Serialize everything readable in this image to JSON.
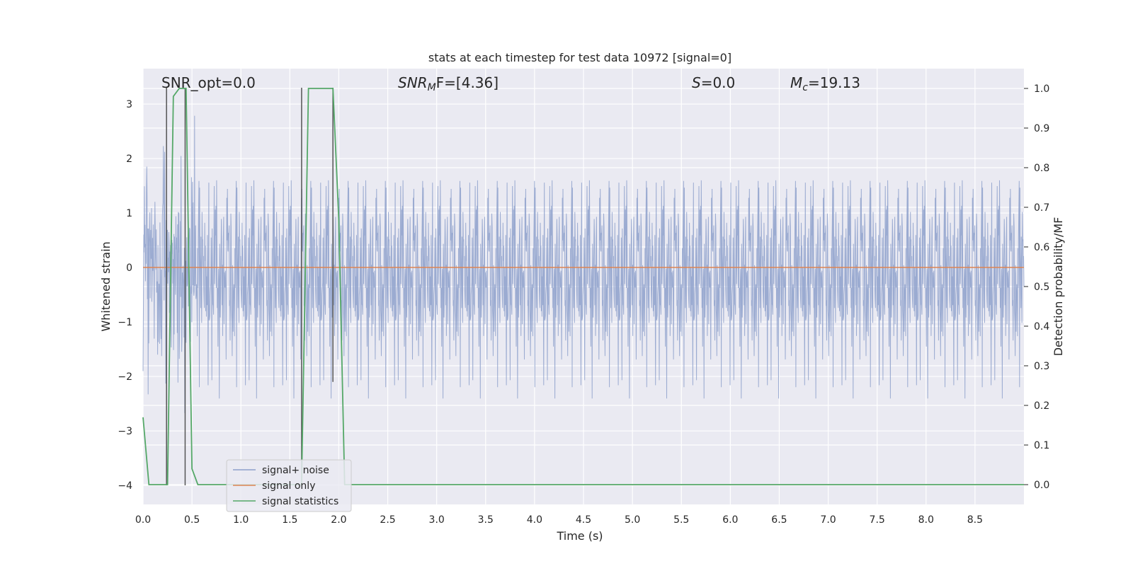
{
  "chart_data": {
    "type": "line",
    "title": "stats at each timestep for test data 10972 [signal=0]",
    "xlabel": "Time (s)",
    "ylabel": "Whitened strain",
    "ylabel_right": "Detection probability/MF",
    "xlim": [
      0.0,
      9.0
    ],
    "ylim": [
      -4.35,
      3.65
    ],
    "ylim_right": [
      -0.05,
      1.05
    ],
    "x_ticks": [
      "0.0",
      "0.5",
      "1.0",
      "1.5",
      "2.0",
      "2.5",
      "3.0",
      "3.5",
      "4.0",
      "4.5",
      "5.0",
      "5.5",
      "6.0",
      "6.5",
      "7.0",
      "7.5",
      "8.0",
      "8.5"
    ],
    "y_ticks": [
      "3",
      "2",
      "1",
      "0",
      "−1",
      "−2",
      "−3",
      "−4"
    ],
    "y_ticks_right": [
      "1.0",
      "0.9",
      "0.8",
      "0.7",
      "0.6",
      "0.5",
      "0.4",
      "0.3",
      "0.2",
      "0.1",
      "0.0"
    ],
    "grid": true,
    "legend_placement": "lower-left",
    "annotations": {
      "snr_opt": "SNR_opt=0.0",
      "snr_mf_prefix": "SNR",
      "snr_mf_sub": "M",
      "snr_mf_suffix": "F=[4.36]",
      "s_symbol": "S",
      "s_value": "=0.0",
      "mc_symbol": "M",
      "mc_sub": "c",
      "mc_value": "=19.13"
    },
    "series": [
      {
        "name": "signal+ noise",
        "color": "#8da0cb",
        "axis": "left",
        "description_values": {
          "mean": 0.0,
          "std": 0.95,
          "min": -4.0,
          "max": 3.3
        }
      },
      {
        "name": "signal only",
        "color": "#dd8452",
        "axis": "left",
        "x": [
          0.0,
          9.0
        ],
        "y": [
          0.0,
          0.0
        ]
      },
      {
        "name": "signal statistics",
        "color": "#55a868",
        "axis": "right",
        "x": [
          0.0,
          0.06,
          0.25,
          0.31,
          0.37,
          0.44,
          0.5,
          0.56,
          0.62,
          1.62,
          1.69,
          1.94,
          2.0,
          2.06,
          9.0
        ],
        "y": [
          0.17,
          0.0,
          0.0,
          0.98,
          1.0,
          1.0,
          0.04,
          0.0,
          0.0,
          0.0,
          1.0,
          1.0,
          0.67,
          0.0,
          0.0
        ]
      }
    ],
    "vlines": [
      {
        "x": 0.24,
        "y_from": 3.3,
        "y_to": -4.0,
        "color": "#555555"
      },
      {
        "x": 0.43,
        "y_from": 3.3,
        "y_to": -4.0,
        "color": "#555555"
      },
      {
        "x": 1.62,
        "y_from": 3.3,
        "y_to": -4.0,
        "color": "#555555"
      },
      {
        "x": 1.94,
        "y_from": 3.3,
        "y_to": -2.1,
        "color": "#555555"
      }
    ]
  },
  "colors": {
    "plot_bg": "#eaeaf2",
    "grid": "#ffffff",
    "text": "#262626"
  }
}
